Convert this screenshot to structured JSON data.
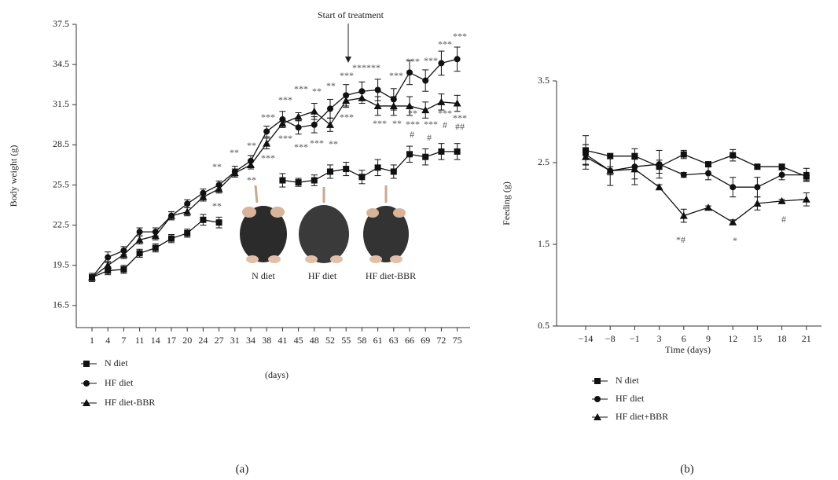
{
  "chart_data": [
    {
      "type": "line",
      "panel_label": "(a)",
      "x_label": "(days)",
      "y_label": "Body weight (g)",
      "arrow_label": "Start of treatment",
      "categories": [
        "1",
        "4",
        "7",
        "11",
        "14",
        "17",
        "20",
        "24",
        "27",
        "31",
        "34",
        "38",
        "41",
        "45",
        "48",
        "52",
        "55",
        "58",
        "61",
        "63",
        "66",
        "69",
        "72",
        "75"
      ],
      "ylim": [
        14.85,
        37.5
      ],
      "yticks": [
        16.5,
        19.5,
        22.5,
        25.5,
        28.5,
        31.5,
        34.5,
        37.5
      ],
      "series": [
        {
          "name": "N diet",
          "color": "#111111",
          "marker": "square",
          "values": [
            18.6,
            19.1,
            19.2,
            20.4,
            20.8,
            21.5,
            21.9,
            22.9,
            22.7,
            null,
            null,
            null,
            25.85,
            25.7,
            25.85,
            26.5,
            26.7,
            26.1,
            26.8,
            26.5,
            27.8,
            27.6,
            28.0,
            28.0
          ],
          "errors": [
            0.3,
            0.3,
            0.3,
            0.3,
            0.3,
            0.3,
            0.3,
            0.4,
            0.4,
            null,
            null,
            null,
            0.5,
            0.3,
            0.4,
            0.5,
            0.5,
            0.5,
            0.6,
            0.5,
            0.6,
            0.6,
            0.6,
            0.6
          ]
        },
        {
          "name": "HF diet",
          "color": "#111111",
          "marker": "circle",
          "values": [
            18.6,
            20.1,
            20.6,
            22.0,
            22.0,
            23.2,
            24.1,
            24.9,
            25.5,
            26.5,
            27.3,
            29.5,
            30.4,
            29.8,
            30.0,
            31.2,
            32.2,
            32.5,
            32.6,
            31.9,
            33.9,
            33.3,
            34.6,
            34.9
          ],
          "errors": [
            0.3,
            0.4,
            0.3,
            0.3,
            0.3,
            0.3,
            0.3,
            0.3,
            0.3,
            0.4,
            0.4,
            0.4,
            0.6,
            0.5,
            0.6,
            0.7,
            0.8,
            0.7,
            0.8,
            0.8,
            0.9,
            0.8,
            0.9,
            0.9
          ]
        },
        {
          "name": "HF diet-BBR",
          "color": "#111111",
          "marker": "triangle",
          "values": [
            18.6,
            19.5,
            20.3,
            21.4,
            21.7,
            23.2,
            23.5,
            24.6,
            25.2,
            26.4,
            27.0,
            28.6,
            30.1,
            30.6,
            31.0,
            30.0,
            31.8,
            32.0,
            31.4,
            31.4,
            31.4,
            31.1,
            31.7,
            31.6
          ],
          "errors": [
            0.3,
            0.3,
            0.3,
            0.3,
            0.3,
            0.3,
            0.3,
            0.3,
            0.3,
            0.3,
            0.3,
            0.4,
            0.3,
            0.3,
            0.6,
            0.5,
            0.5,
            0.4,
            0.7,
            0.7,
            0.7,
            0.6,
            0.6,
            0.6
          ]
        }
      ],
      "image_labels": [
        "N diet",
        "HF diet",
        "HF diet-BBR"
      ],
      "annotations": [
        "**",
        "**",
        "**",
        "**",
        "**",
        "***",
        "***",
        "***",
        "***",
        "***",
        "***",
        "**",
        "***",
        "**",
        "**",
        "***",
        "***",
        "******",
        "***",
        "**",
        "***",
        "***",
        "**",
        "***",
        "#",
        "***",
        "***",
        "#",
        "***",
        "***",
        "#",
        "***",
        "***",
        "##"
      ]
    },
    {
      "type": "line",
      "panel_label": "(b)",
      "x_label": "Time (days)",
      "y_label": "Feeding (g)",
      "categories": [
        "−14",
        "−8",
        "−1",
        "3",
        "6",
        "9",
        "12",
        "15",
        "18",
        "21"
      ],
      "ylim": [
        0.5,
        3.5
      ],
      "yticks": [
        0.5,
        1.5,
        2.5,
        3.5
      ],
      "series": [
        {
          "name": "N diet",
          "color": "#111111",
          "marker": "square",
          "values": [
            2.65,
            2.58,
            2.58,
            2.45,
            2.6,
            2.48,
            2.59,
            2.45,
            2.45,
            2.33
          ],
          "errors": [
            0.18,
            0.03,
            0.03,
            0.08,
            0.05,
            0.03,
            0.07,
            0.03,
            0.03,
            0.05
          ]
        },
        {
          "name": "HF diet",
          "color": "#111111",
          "marker": "circle",
          "values": [
            2.6,
            2.4,
            2.45,
            2.48,
            2.35,
            2.37,
            2.2,
            2.2,
            2.35,
            2.35
          ],
          "errors": [
            0.12,
            0.05,
            0.22,
            0.17,
            0.03,
            0.08,
            0.12,
            0.12,
            0.06,
            0.08
          ]
        },
        {
          "name": "HF diet+BBR",
          "color": "#111111",
          "marker": "triangle",
          "values": [
            2.57,
            2.4,
            2.42,
            2.2,
            1.85,
            1.95,
            1.77,
            2.0,
            2.03,
            2.05
          ],
          "errors": [
            0.15,
            0.18,
            0.12,
            0.03,
            0.08,
            0.02,
            0.03,
            0.08,
            0.02,
            0.08
          ]
        }
      ],
      "annotations": [
        "*#",
        "*",
        "#"
      ]
    }
  ]
}
